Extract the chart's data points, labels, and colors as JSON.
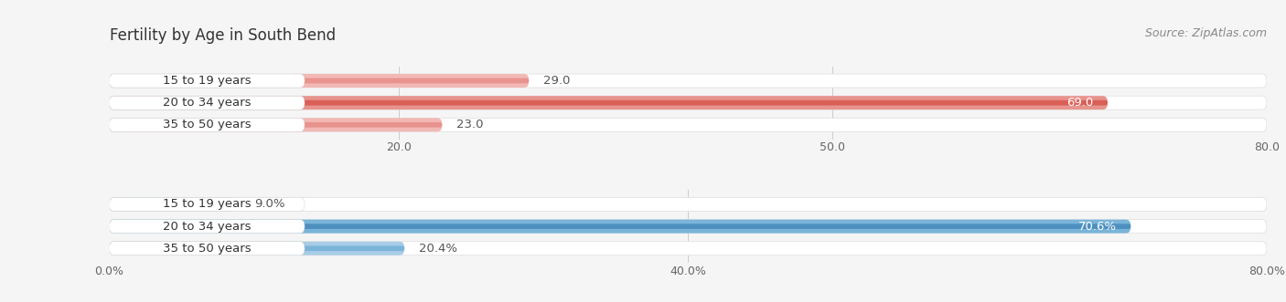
{
  "title": "Fertility by Age in South Bend",
  "source": "Source: ZipAtlas.com",
  "top_section": {
    "categories": [
      "15 to 19 years",
      "20 to 34 years",
      "35 to 50 years"
    ],
    "values": [
      29.0,
      69.0,
      23.0
    ],
    "bar_color": [
      "#e8938d",
      "#d95f57",
      "#e8938d"
    ],
    "bar_color_light": [
      "#f2b8b5",
      "#e8938d",
      "#f2b8b5"
    ],
    "xlim": [
      0,
      80
    ],
    "xticks": [
      20.0,
      50.0,
      80.0
    ],
    "xtick_labels": [
      "20.0",
      "50.0",
      "80.0"
    ],
    "label_inside": [
      false,
      true,
      false
    ],
    "label_suffix": ""
  },
  "bottom_section": {
    "categories": [
      "15 to 19 years",
      "20 to 34 years",
      "35 to 50 years"
    ],
    "values": [
      9.0,
      70.6,
      20.4
    ],
    "bar_color": [
      "#7ab5d9",
      "#4e8fbf",
      "#7ab5d9"
    ],
    "bar_color_light": [
      "#a8cce6",
      "#7ab5d9",
      "#a8cce6"
    ],
    "xlim": [
      0,
      80
    ],
    "xticks": [
      0.0,
      40.0,
      80.0
    ],
    "xtick_labels": [
      "0.0%",
      "40.0%",
      "80.0%"
    ],
    "label_inside": [
      false,
      true,
      false
    ],
    "label_suffix": "%"
  },
  "bg_color": "#f5f5f5",
  "bar_bg_color": "#ffffff",
  "label_fontsize": 9.5,
  "tick_fontsize": 9,
  "title_fontsize": 12,
  "source_fontsize": 9
}
